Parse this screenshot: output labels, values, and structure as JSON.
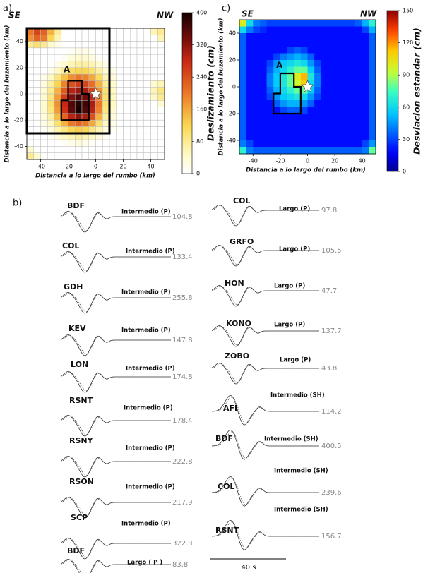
{
  "panels": {
    "a": "a)",
    "b": "b)",
    "c": "c)"
  },
  "chart_data": [
    {
      "type": "heatmap",
      "colormap": "hot",
      "grid": true,
      "xlabel": "Distancia a lo largo del rumbo (km)",
      "ylabel": "Distancia a lo largo del buzamiento (km)",
      "xlim": [
        -50,
        50
      ],
      "ylim": [
        -50,
        50
      ],
      "xticks": [
        -40,
        -20,
        0,
        20,
        40
      ],
      "yticks": [
        -40,
        -20,
        0,
        20,
        40
      ],
      "annotations": [
        "SE",
        "NW",
        "A"
      ],
      "zlabel": "Deslizamiento (cm)",
      "zlim": [
        0,
        400
      ],
      "zticks": [
        0,
        80,
        160,
        240,
        320,
        400
      ],
      "z": [
        [
          200,
          250,
          220,
          150,
          80,
          0,
          0,
          0,
          0,
          0,
          0,
          0,
          0,
          0,
          0,
          0,
          0,
          0,
          60,
          80
        ],
        [
          180,
          220,
          200,
          120,
          60,
          0,
          0,
          0,
          0,
          0,
          0,
          0,
          0,
          0,
          0,
          0,
          0,
          0,
          0,
          60
        ],
        [
          80,
          100,
          80,
          40,
          20,
          0,
          0,
          0,
          0,
          0,
          0,
          0,
          0,
          0,
          0,
          0,
          0,
          0,
          0,
          0
        ],
        [
          0,
          0,
          0,
          0,
          0,
          0,
          10,
          20,
          20,
          10,
          0,
          0,
          0,
          0,
          0,
          0,
          0,
          0,
          0,
          0
        ],
        [
          0,
          0,
          0,
          0,
          0,
          10,
          30,
          40,
          40,
          30,
          10,
          0,
          0,
          0,
          0,
          0,
          0,
          0,
          0,
          0
        ],
        [
          0,
          0,
          0,
          0,
          20,
          40,
          60,
          70,
          70,
          60,
          40,
          20,
          0,
          0,
          0,
          0,
          0,
          0,
          0,
          0
        ],
        [
          0,
          0,
          0,
          20,
          50,
          80,
          110,
          120,
          120,
          100,
          70,
          40,
          20,
          0,
          0,
          0,
          0,
          0,
          0,
          0
        ],
        [
          0,
          0,
          20,
          50,
          90,
          140,
          180,
          200,
          190,
          160,
          110,
          60,
          30,
          0,
          0,
          0,
          0,
          0,
          0,
          0
        ],
        [
          0,
          0,
          30,
          70,
          120,
          190,
          240,
          260,
          250,
          210,
          150,
          80,
          40,
          0,
          0,
          0,
          0,
          0,
          40,
          60
        ],
        [
          0,
          0,
          40,
          80,
          150,
          230,
          290,
          310,
          300,
          250,
          180,
          100,
          50,
          0,
          0,
          0,
          0,
          0,
          60,
          90
        ],
        [
          0,
          0,
          40,
          90,
          170,
          260,
          330,
          360,
          340,
          280,
          190,
          100,
          50,
          0,
          0,
          0,
          0,
          0,
          50,
          80
        ],
        [
          0,
          0,
          40,
          100,
          180,
          280,
          360,
          390,
          370,
          300,
          200,
          100,
          50,
          0,
          0,
          0,
          0,
          0,
          0,
          40
        ],
        [
          0,
          0,
          40,
          90,
          170,
          270,
          350,
          400,
          360,
          290,
          190,
          90,
          40,
          0,
          0,
          0,
          0,
          0,
          0,
          0
        ],
        [
          0,
          0,
          30,
          70,
          140,
          220,
          290,
          320,
          300,
          240,
          150,
          70,
          30,
          0,
          0,
          0,
          0,
          0,
          0,
          0
        ],
        [
          0,
          0,
          20,
          50,
          100,
          150,
          200,
          220,
          200,
          160,
          100,
          50,
          20,
          0,
          0,
          0,
          0,
          0,
          0,
          0
        ],
        [
          0,
          0,
          10,
          30,
          60,
          90,
          120,
          130,
          120,
          90,
          60,
          30,
          10,
          0,
          0,
          0,
          0,
          0,
          0,
          0
        ],
        [
          0,
          0,
          0,
          10,
          30,
          50,
          60,
          70,
          60,
          50,
          30,
          10,
          0,
          0,
          0,
          0,
          0,
          0,
          0,
          0
        ],
        [
          0,
          0,
          0,
          0,
          0,
          10,
          20,
          30,
          20,
          10,
          0,
          0,
          0,
          0,
          0,
          0,
          0,
          0,
          0,
          0
        ],
        [
          40,
          0,
          0,
          0,
          0,
          0,
          0,
          0,
          0,
          0,
          0,
          0,
          0,
          0,
          0,
          0,
          0,
          0,
          0,
          0
        ],
        [
          80,
          40,
          0,
          0,
          0,
          0,
          0,
          0,
          0,
          0,
          0,
          0,
          0,
          0,
          0,
          0,
          0,
          0,
          0,
          0
        ]
      ]
    },
    {
      "type": "heatmap",
      "colormap": "jet",
      "grid": false,
      "xlabel": "Distancia a lo largo del rumbo (km)",
      "ylabel": "Distancia a lo largo del buzamiento (km)",
      "xlim": [
        -50,
        50
      ],
      "ylim": [
        -50,
        50
      ],
      "xticks": [
        -40,
        -20,
        0,
        20,
        40
      ],
      "yticks": [
        -40,
        -20,
        0,
        20,
        40
      ],
      "annotations": [
        "SE",
        "NW",
        "A"
      ],
      "zlabel": "Desviacion estandar (cm)",
      "zlim": [
        0,
        150
      ],
      "zticks": [
        0,
        30,
        60,
        90,
        120,
        150
      ],
      "z": [
        [
          100,
          60,
          40,
          35,
          30,
          30,
          30,
          30,
          30,
          30,
          30,
          30,
          30,
          30,
          30,
          30,
          30,
          35,
          50,
          70
        ],
        [
          60,
          40,
          30,
          25,
          20,
          20,
          20,
          20,
          20,
          20,
          20,
          20,
          20,
          20,
          20,
          20,
          20,
          20,
          30,
          50
        ],
        [
          35,
          20,
          20,
          20,
          20,
          20,
          20,
          20,
          20,
          20,
          20,
          20,
          20,
          20,
          20,
          20,
          20,
          20,
          20,
          35
        ],
        [
          35,
          20,
          20,
          20,
          20,
          20,
          20,
          20,
          20,
          20,
          20,
          20,
          20,
          20,
          20,
          20,
          20,
          20,
          20,
          35
        ],
        [
          35,
          20,
          20,
          20,
          20,
          20,
          20,
          30,
          35,
          30,
          20,
          20,
          20,
          20,
          20,
          20,
          20,
          20,
          20,
          35
        ],
        [
          35,
          20,
          20,
          20,
          20,
          30,
          40,
          45,
          50,
          45,
          35,
          20,
          20,
          20,
          20,
          20,
          20,
          20,
          20,
          35
        ],
        [
          35,
          20,
          20,
          20,
          30,
          45,
          55,
          60,
          65,
          60,
          45,
          30,
          20,
          20,
          20,
          20,
          20,
          20,
          20,
          35
        ],
        [
          35,
          20,
          20,
          20,
          35,
          50,
          60,
          70,
          80,
          80,
          55,
          35,
          20,
          20,
          20,
          20,
          20,
          20,
          20,
          35
        ],
        [
          35,
          20,
          20,
          20,
          40,
          55,
          65,
          80,
          100,
          115,
          65,
          40,
          20,
          20,
          20,
          20,
          20,
          20,
          20,
          35
        ],
        [
          35,
          20,
          20,
          20,
          40,
          55,
          65,
          80,
          95,
          110,
          60,
          40,
          20,
          20,
          20,
          20,
          20,
          20,
          20,
          35
        ],
        [
          35,
          20,
          20,
          20,
          35,
          50,
          60,
          70,
          80,
          80,
          55,
          35,
          20,
          20,
          20,
          20,
          20,
          20,
          20,
          35
        ],
        [
          35,
          20,
          20,
          20,
          30,
          45,
          55,
          60,
          65,
          60,
          45,
          30,
          20,
          20,
          20,
          20,
          20,
          20,
          20,
          35
        ],
        [
          35,
          20,
          20,
          20,
          20,
          35,
          45,
          50,
          50,
          45,
          35,
          20,
          20,
          20,
          20,
          20,
          20,
          20,
          20,
          35
        ],
        [
          35,
          20,
          20,
          20,
          20,
          20,
          30,
          35,
          35,
          30,
          20,
          20,
          20,
          20,
          20,
          20,
          20,
          20,
          20,
          35
        ],
        [
          35,
          20,
          20,
          20,
          20,
          20,
          20,
          20,
          20,
          20,
          20,
          20,
          20,
          20,
          20,
          20,
          20,
          20,
          20,
          35
        ],
        [
          35,
          20,
          20,
          20,
          20,
          20,
          20,
          20,
          20,
          20,
          20,
          20,
          20,
          20,
          20,
          20,
          20,
          20,
          20,
          35
        ],
        [
          35,
          20,
          20,
          20,
          20,
          20,
          20,
          20,
          20,
          20,
          20,
          20,
          20,
          20,
          20,
          20,
          20,
          20,
          20,
          35
        ],
        [
          35,
          20,
          20,
          20,
          20,
          20,
          20,
          20,
          20,
          20,
          20,
          20,
          20,
          20,
          20,
          20,
          20,
          20,
          20,
          35
        ],
        [
          40,
          30,
          20,
          20,
          20,
          20,
          20,
          20,
          20,
          20,
          20,
          20,
          20,
          20,
          20,
          20,
          20,
          20,
          30,
          45
        ],
        [
          70,
          40,
          35,
          35,
          35,
          35,
          35,
          35,
          35,
          35,
          35,
          35,
          35,
          35,
          35,
          35,
          35,
          35,
          40,
          80
        ]
      ]
    }
  ],
  "waveforms": {
    "left": [
      {
        "station": "BDF",
        "phase": "Intermedio (P)",
        "value": 104.8
      },
      {
        "station": "COL",
        "phase": "Intermedio (P)",
        "value": 133.4
      },
      {
        "station": "GDH",
        "phase": "Intermedio (P)",
        "value": 255.8
      },
      {
        "station": "KEV",
        "phase": "Intermedio (P)",
        "value": 147.8
      },
      {
        "station": "LON",
        "phase": "Intermedio (P)",
        "value": 174.8
      },
      {
        "station": "RSNT",
        "phase": "Intermedio (P)",
        "value": 178.4
      },
      {
        "station": "RSNY",
        "phase": "Intermedio (P)",
        "value": 222.8
      },
      {
        "station": "RSON",
        "phase": "Intermedio (P)",
        "value": 217.9
      },
      {
        "station": "SCP",
        "phase": "Intermedio (P)",
        "value": 322.3
      },
      {
        "station": "BDF",
        "phase": "Largo ( P )",
        "value": 83.8
      }
    ],
    "right": [
      {
        "station": "COL",
        "phase": "Largo (P)",
        "value": 97.8
      },
      {
        "station": "GRFO",
        "phase": "Largo (P)",
        "value": 105.5
      },
      {
        "station": "HON",
        "phase": "Largo (P)",
        "value": 47.7
      },
      {
        "station": "KONO",
        "phase": "Largo (P)",
        "value": 137.7
      },
      {
        "station": "ZOBO",
        "phase": "Largo (P)",
        "value": 43.8
      },
      {
        "station": "AFI",
        "phase": "Intermedio (SH)",
        "value": 114.2
      },
      {
        "station": "BDF",
        "phase": "Intermedio (SH)",
        "value": 400.5
      },
      {
        "station": "COL",
        "phase": "Intermedio (SH)",
        "value": 239.6
      },
      {
        "station": "RSNT",
        "phase": "Intermedio (SH)",
        "value": 156.7
      }
    ],
    "scale_bar": "40 s"
  }
}
